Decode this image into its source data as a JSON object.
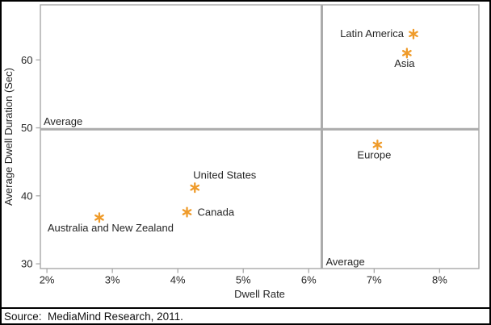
{
  "chart_data": {
    "type": "scatter",
    "title": "",
    "xlabel": "Dwell Rate",
    "ylabel": "Average Dwell Duration (Sec)",
    "x_tick_labels": [
      "2%",
      "3%",
      "4%",
      "5%",
      "6%",
      "7%",
      "8%"
    ],
    "x_tick_values": [
      2,
      3,
      4,
      5,
      6,
      7,
      8
    ],
    "y_tick_labels": [
      "30",
      "40",
      "50",
      "60"
    ],
    "y_tick_values": [
      30,
      40,
      50,
      60
    ],
    "x_range": [
      1.9,
      8.6
    ],
    "y_range": [
      29.3,
      68.1
    ],
    "grid": false,
    "legend": false,
    "points": [
      {
        "label": "Latin America",
        "x": 7.6,
        "y": 63.8,
        "label_pos": "left"
      },
      {
        "label": "Asia",
        "x": 7.5,
        "y": 61.0,
        "label_pos": "below",
        "label_dx": -3
      },
      {
        "label": "Europe",
        "x": 7.05,
        "y": 47.5,
        "label_pos": "below",
        "label_dx": -4
      },
      {
        "label": "United States",
        "x": 4.26,
        "y": 41.2,
        "label_pos": "above-right"
      },
      {
        "label": "Canada",
        "x": 4.14,
        "y": 37.6,
        "label_pos": "right"
      },
      {
        "label": "Australia and New Zealand",
        "x": 2.8,
        "y": 36.8,
        "label_pos": "below",
        "label_dx": 14
      }
    ],
    "reference_lines": {
      "horizontal": {
        "value": 49.8,
        "label": "Average"
      },
      "vertical": {
        "value": 6.2,
        "label": "Average"
      }
    },
    "marker_color": "#EF9B2A",
    "reference_line_color": "#ABABAB",
    "frame_color": "#A8A8A8",
    "text_color": "#262626"
  },
  "footer": {
    "source": "Source:  MediaMind Research, 2011."
  }
}
